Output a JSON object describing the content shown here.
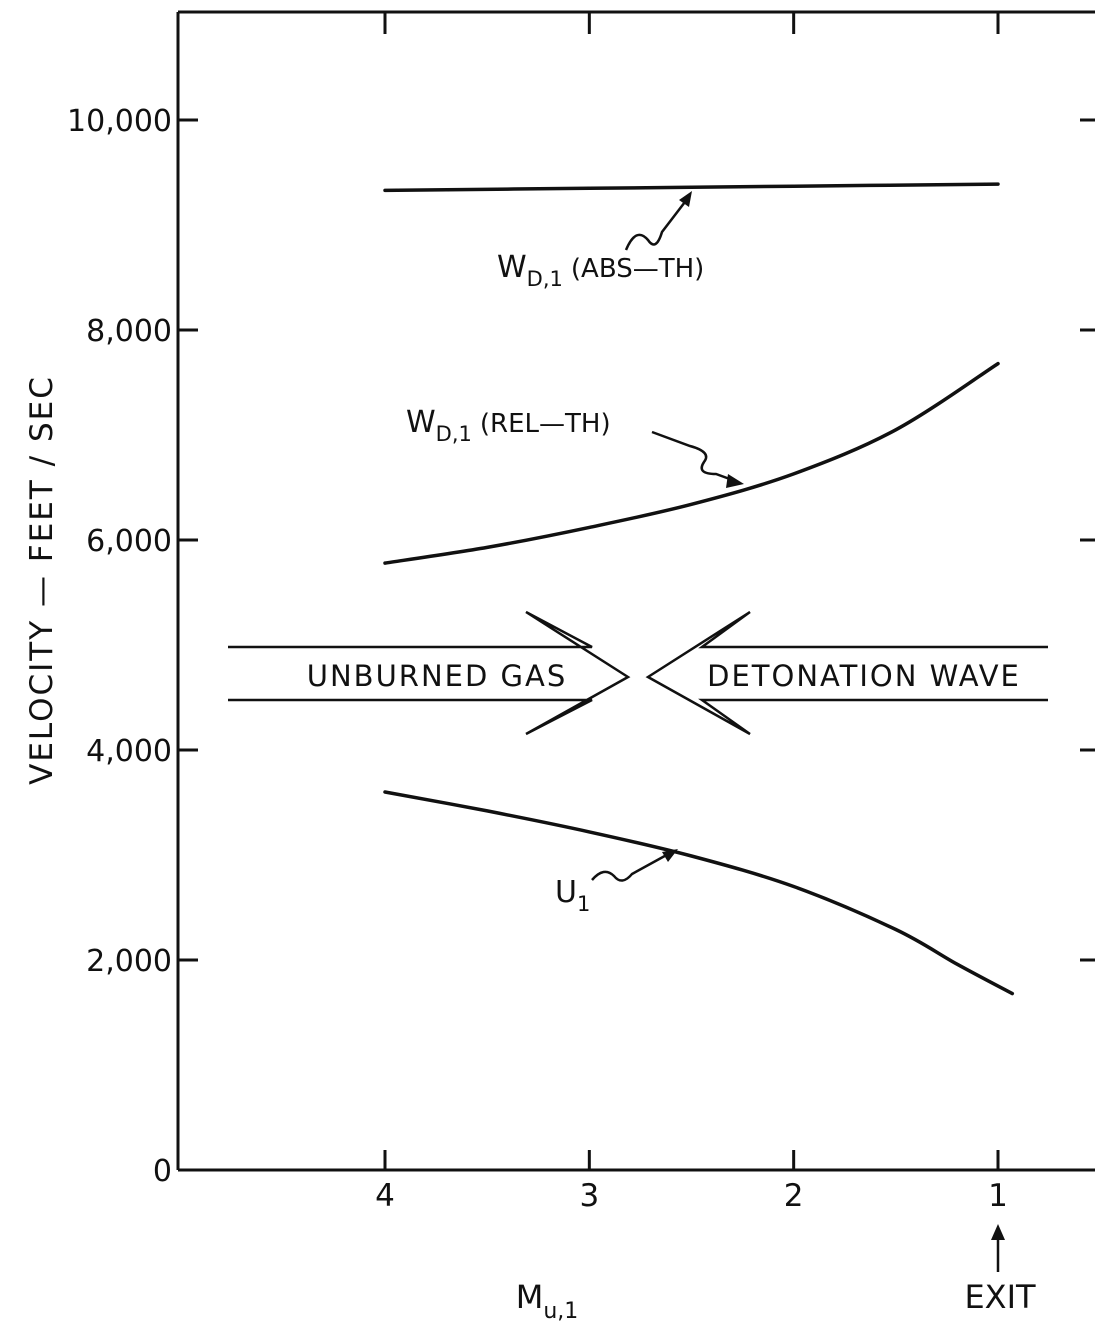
{
  "chart_data": {
    "type": "line",
    "xlabel_main": "M",
    "xlabel_sub": "u,1",
    "ylabel": "VELOCITY — FEET / SEC",
    "x_reversed": true,
    "xlim": [
      4.95,
      0.5
    ],
    "ylim": [
      0,
      11000
    ],
    "x_ticks": [
      4,
      3,
      2,
      1
    ],
    "x_tick_labels": [
      "4",
      "3",
      "2",
      "1"
    ],
    "y_ticks": [
      0,
      2000,
      4000,
      6000,
      8000,
      10000
    ],
    "y_tick_labels": [
      "0",
      "2,000",
      "4,000",
      "6,000",
      "8,000",
      "10,000"
    ],
    "exit_label": "EXIT",
    "exit_x": 1,
    "series": [
      {
        "name_main": "W",
        "name_sub": "D,1",
        "name_tail": "(ABS—TH)",
        "x": [
          4,
          3,
          2,
          1
        ],
        "y": [
          9330,
          9350,
          9370,
          9390
        ]
      },
      {
        "name_main": "W",
        "name_sub": "D,1",
        "name_tail": "(REL—TH)",
        "x": [
          4,
          3.5,
          3,
          2.5,
          2,
          1.5,
          1
        ],
        "y": [
          5780,
          5930,
          6120,
          6340,
          6630,
          7050,
          7680
        ]
      },
      {
        "name_main": "U",
        "name_sub": "1",
        "name_tail": "",
        "x": [
          4,
          3.5,
          3,
          2.5,
          2,
          1.5,
          1.2,
          0.93
        ],
        "y": [
          3600,
          3420,
          3220,
          2990,
          2700,
          2290,
          1960,
          1680
        ]
      }
    ],
    "annotations": {
      "left_arrow_label": "UNBURNED GAS",
      "right_arrow_label": "DETONATION WAVE"
    }
  }
}
